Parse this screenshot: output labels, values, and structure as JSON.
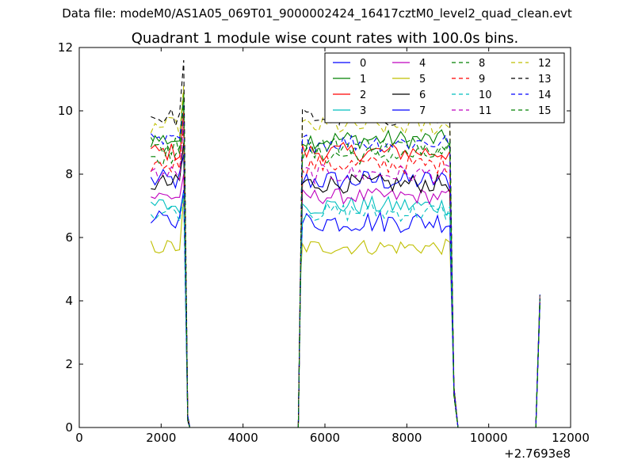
{
  "suptitle": "Data file: modeM0/AS1A05_069T01_9000002424_16417cztM0_level2_quad_clean.evt",
  "chart_data": {
    "type": "line",
    "title": "Quadrant 1 module wise count rates with 100.0s bins.",
    "xlabel": "",
    "ylabel": "",
    "x_offset_label": "+2.7693e8",
    "xlim": [
      0,
      12000
    ],
    "ylim": [
      0,
      12
    ],
    "x_ticks": [
      0,
      2000,
      4000,
      6000,
      8000,
      10000,
      12000
    ],
    "y_ticks": [
      0,
      2,
      4,
      6,
      8,
      10,
      12
    ],
    "grid": false,
    "legend_position": "top-right",
    "segments": [
      {
        "x_start": 1750,
        "x_end": 2550,
        "step": 100
      },
      {
        "x_start": 5450,
        "x_end": 9050,
        "step": 100
      },
      {
        "x_start": 11250,
        "x_end": 11250,
        "step": 100
      }
    ],
    "series": [
      {
        "name": "0",
        "color": "#0000ff",
        "dash": "solid",
        "level": 7.8,
        "spike": 8.6,
        "amp": 0.35
      },
      {
        "name": "1",
        "color": "#008000",
        "dash": "solid",
        "level": 9.1,
        "spike": 10.6,
        "amp": 0.3
      },
      {
        "name": "2",
        "color": "#ff0000",
        "dash": "solid",
        "level": 8.7,
        "spike": 10.0,
        "amp": 0.3
      },
      {
        "name": "3",
        "color": "#00bfbf",
        "dash": "solid",
        "level": 7.0,
        "spike": 7.4,
        "amp": 0.3
      },
      {
        "name": "4",
        "color": "#bf00bf",
        "dash": "solid",
        "level": 7.3,
        "spike": 8.0,
        "amp": 0.25
      },
      {
        "name": "5",
        "color": "#bfbf00",
        "dash": "solid",
        "level": 5.7,
        "spike": 7.3,
        "amp": 0.25
      },
      {
        "name": "6",
        "color": "#000000",
        "dash": "solid",
        "level": 7.7,
        "spike": 9.0,
        "amp": 0.3
      },
      {
        "name": "7",
        "color": "#0000ff",
        "dash": "solid",
        "level": 6.5,
        "spike": 7.5,
        "amp": 0.35
      },
      {
        "name": "8",
        "color": "#008000",
        "dash": "dashed",
        "level": 8.6,
        "spike": 9.4,
        "amp": 0.3
      },
      {
        "name": "9",
        "color": "#ff0000",
        "dash": "dashed",
        "level": 8.3,
        "spike": 9.5,
        "amp": 0.3
      },
      {
        "name": "10",
        "color": "#00bfbf",
        "dash": "dashed",
        "level": 6.8,
        "spike": 7.4,
        "amp": 0.3
      },
      {
        "name": "11",
        "color": "#bf00bf",
        "dash": "dashed",
        "level": 8.0,
        "spike": 9.8,
        "amp": 0.3
      },
      {
        "name": "12",
        "color": "#bfbf00",
        "dash": "dashed",
        "level": 9.5,
        "spike": 10.8,
        "amp": 0.3
      },
      {
        "name": "13",
        "color": "#000000",
        "dash": "dashed",
        "level": 9.8,
        "spike": 11.6,
        "amp": 0.3
      },
      {
        "name": "14",
        "color": "#0000ff",
        "dash": "dashed",
        "level": 9.0,
        "spike": 10.2,
        "amp": 0.3
      },
      {
        "name": "15",
        "color": "#008000",
        "dash": "dashed",
        "level": 8.9,
        "spike": 10.3,
        "amp": 0.3
      }
    ],
    "final_spike": {
      "x": 11250,
      "y": 4.2
    }
  }
}
